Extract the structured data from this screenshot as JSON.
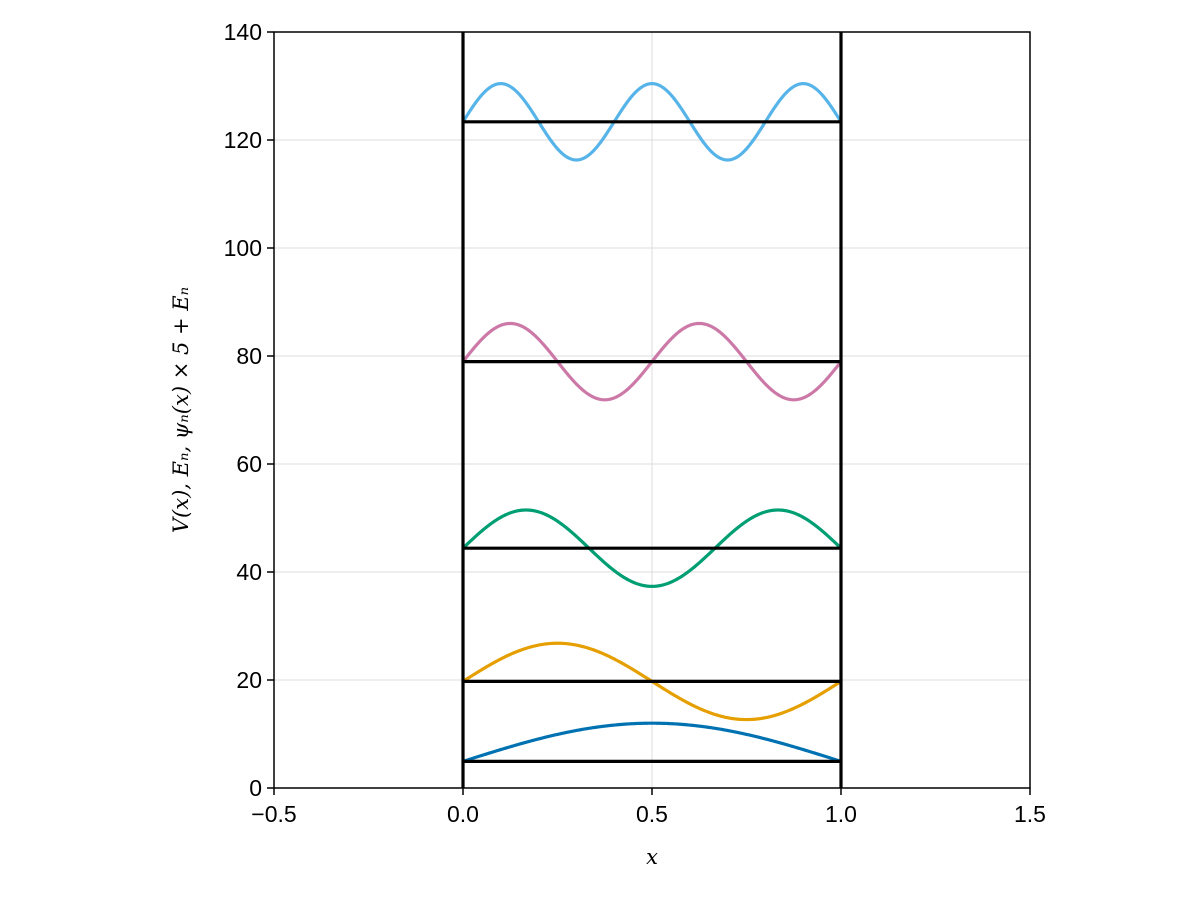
{
  "chart_data": {
    "type": "line",
    "title": "",
    "xlabel": "x",
    "ylabel": "V(x), Eₙ, ψₙ(x) × 5 + Eₙ",
    "xlim": [
      -0.5,
      1.5
    ],
    "ylim": [
      0,
      140
    ],
    "xticks": [
      -0.5,
      0.0,
      0.5,
      1.0,
      1.5
    ],
    "xtick_labels": [
      "−0.5",
      "0.0",
      "0.5",
      "1.0",
      "1.5"
    ],
    "yticks": [
      0,
      20,
      40,
      60,
      80,
      100,
      120,
      140
    ],
    "ytick_labels": [
      "0",
      "20",
      "40",
      "60",
      "80",
      "100",
      "120",
      "140"
    ],
    "grid": true,
    "legend": "none",
    "potential_walls_x": [
      0.0,
      1.0
    ],
    "energy_levels": [
      4.93,
      19.74,
      44.41,
      78.96,
      123.37
    ],
    "wavefunction_amplitude": 7.07,
    "wavefunction_domain": [
      0.0,
      1.0
    ],
    "series": [
      {
        "n": 1,
        "color": "#0072b2",
        "offset": 4.93
      },
      {
        "n": 2,
        "color": "#e69f00",
        "offset": 19.74
      },
      {
        "n": 3,
        "color": "#009e73",
        "offset": 44.41
      },
      {
        "n": 4,
        "color": "#cc79a7",
        "offset": 78.96
      },
      {
        "n": 5,
        "color": "#56b4e9",
        "offset": 123.37
      }
    ],
    "wall_color": "#000000",
    "level_color": "#000000",
    "grid_color": "#dcdcdc"
  }
}
